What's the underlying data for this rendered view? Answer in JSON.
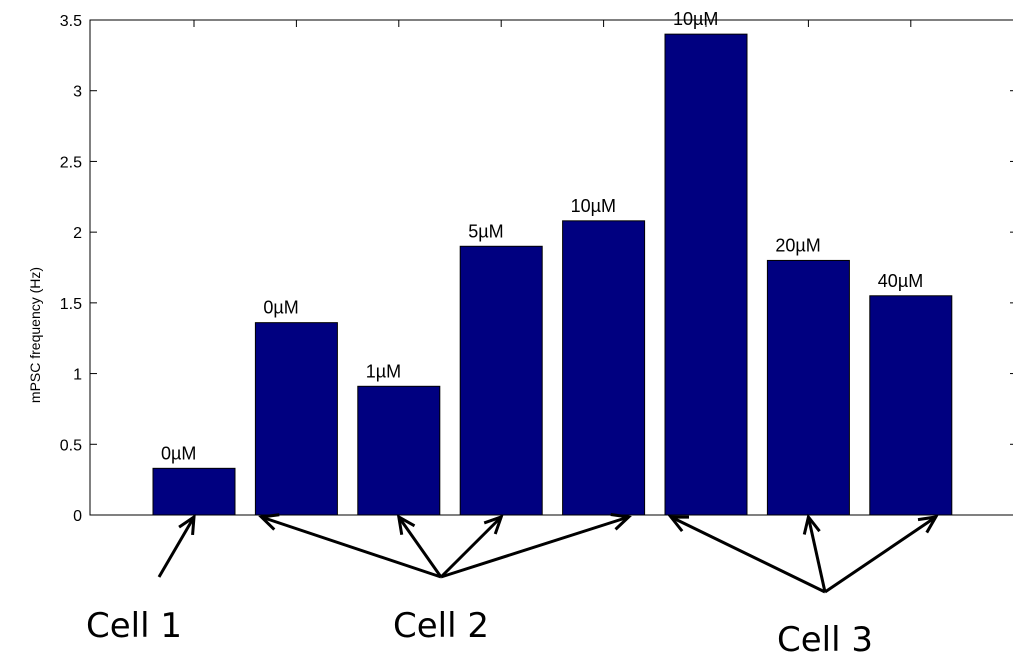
{
  "chart_data": {
    "type": "bar",
    "title": "",
    "xlabel": "",
    "ylabel": "mPSC frequency (Hz)",
    "ylim": [
      0,
      3.5
    ],
    "yticks": [
      "0",
      "0.5",
      "1",
      "1.5",
      "2",
      "2.5",
      "3",
      "3.5"
    ],
    "grid": false,
    "bar_color": "#000080",
    "values": [
      0.33,
      1.36,
      0.91,
      1.9,
      2.08,
      3.4,
      1.8,
      1.55
    ],
    "bar_labels": [
      "0µM",
      "0µM",
      "1µM",
      "5µM",
      "10µM",
      "10µM",
      "20µM",
      "40µM"
    ],
    "groups": [
      {
        "label": "Cell 1",
        "bars": [
          0
        ]
      },
      {
        "label": "Cell 2",
        "bars": [
          1,
          2,
          3,
          4
        ]
      },
      {
        "label": "Cell 3",
        "bars": [
          5,
          6,
          7
        ]
      }
    ]
  }
}
